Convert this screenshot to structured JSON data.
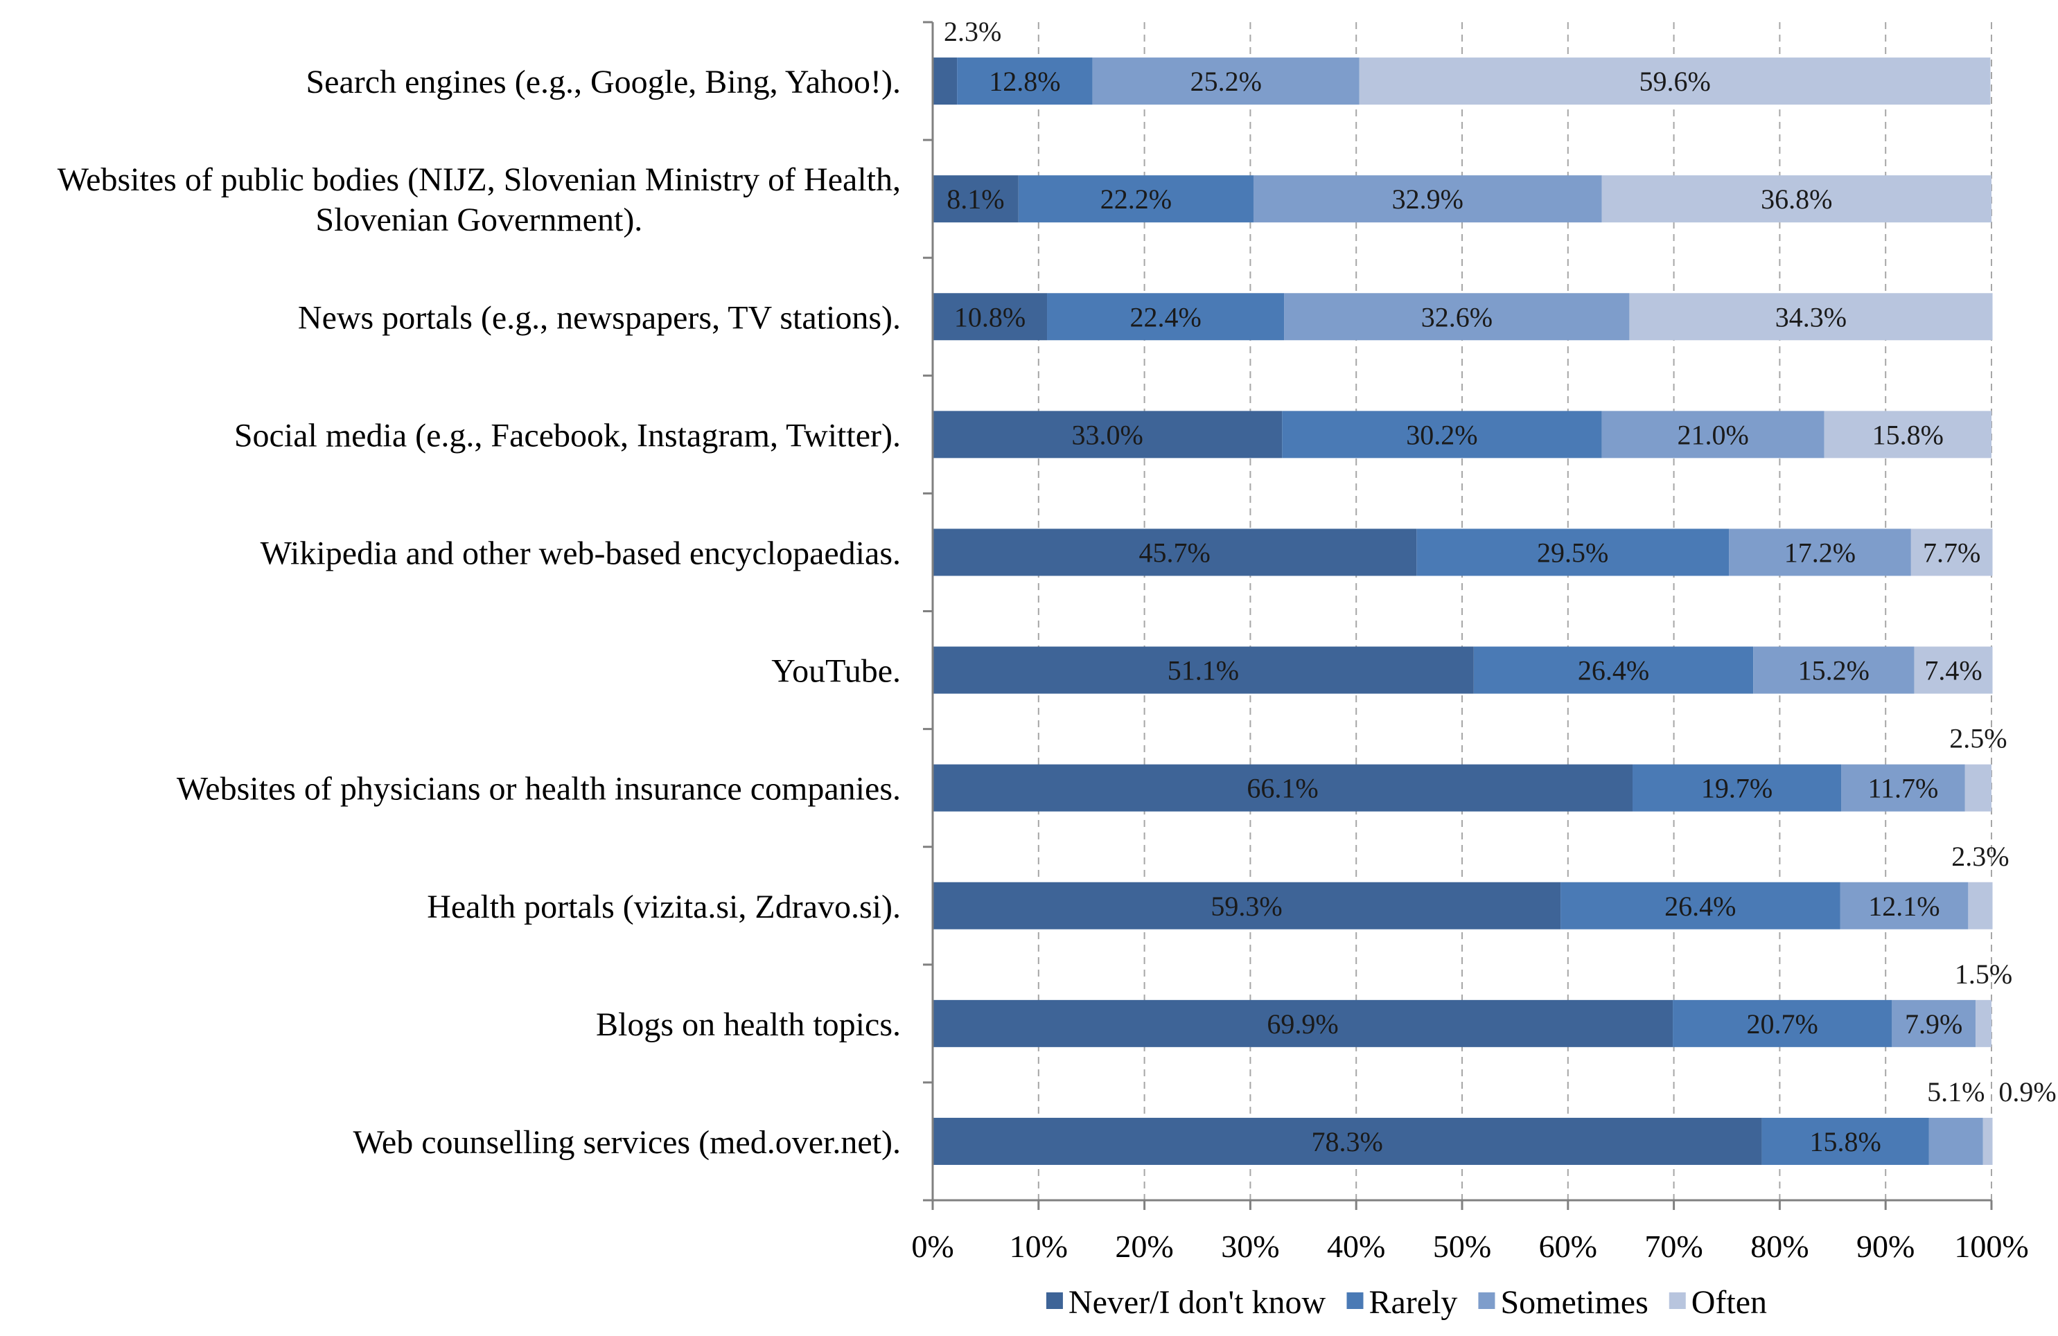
{
  "chart_data": {
    "type": "bar",
    "orientation": "horizontal",
    "stacked": "percent",
    "categories": [
      [
        "Search engines (e.g., Google, Bing, Yahoo!)."
      ],
      [
        "Websites of public bodies (NIJZ, Slovenian Ministry of Health,",
        "Slovenian Government)."
      ],
      [
        "News portals (e.g., newspapers, TV stations)."
      ],
      [
        "Social media (e.g., Facebook, Instagram, Twitter)."
      ],
      [
        "Wikipedia and other web-based encyclopaedias."
      ],
      [
        "YouTube."
      ],
      [
        "Websites of physicians or health insurance companies."
      ],
      [
        "Health portals (vizita.si, Zdravo.si)."
      ],
      [
        "Blogs on health topics."
      ],
      [
        "Web counselling services (med.over.net)."
      ]
    ],
    "series": [
      {
        "name": "Never/I don't know",
        "color": "#3e6497",
        "values": [
          2.3,
          8.1,
          10.8,
          33.0,
          45.7,
          51.1,
          66.1,
          59.3,
          69.9,
          78.3
        ],
        "labels": [
          "2.3%",
          "8.1%",
          "10.8%",
          "33.0%",
          "45.7%",
          "51.1%",
          "66.1%",
          "59.3%",
          "69.9%",
          "78.3%"
        ]
      },
      {
        "name": "Rarely",
        "color": "#4a7ab5",
        "values": [
          12.8,
          22.2,
          22.4,
          30.2,
          29.5,
          26.4,
          19.7,
          26.4,
          20.7,
          15.8
        ],
        "labels": [
          "12.8%",
          "22.2%",
          "22.4%",
          "30.2%",
          "29.5%",
          "26.4%",
          "19.7%",
          "26.4%",
          "20.7%",
          "15.8%"
        ]
      },
      {
        "name": "Sometimes",
        "color": "#7e9dcb",
        "values": [
          25.2,
          32.9,
          32.6,
          21.0,
          17.2,
          15.2,
          11.7,
          12.1,
          7.9,
          5.1
        ],
        "labels": [
          "25.2%",
          "32.9%",
          "32.6%",
          "21.0%",
          "17.2%",
          "15.2%",
          "11.7%",
          "12.1%",
          "7.9%",
          "5.1%"
        ]
      },
      {
        "name": "Often",
        "color": "#b8c5de",
        "values": [
          59.6,
          36.8,
          34.3,
          15.8,
          7.7,
          7.4,
          2.5,
          2.3,
          1.5,
          0.9
        ],
        "labels": [
          "59.6%",
          "36.8%",
          "34.3%",
          "15.8%",
          "7.7%",
          "7.4%",
          "2.5%",
          "2.3%",
          "1.5%",
          "0.9%"
        ]
      }
    ],
    "x_ticks": [
      "0%",
      "10%",
      "20%",
      "30%",
      "40%",
      "50%",
      "60%",
      "70%",
      "80%",
      "90%",
      "100%"
    ],
    "xlim": [
      0,
      100
    ],
    "grid": true,
    "legend": "bottom"
  }
}
